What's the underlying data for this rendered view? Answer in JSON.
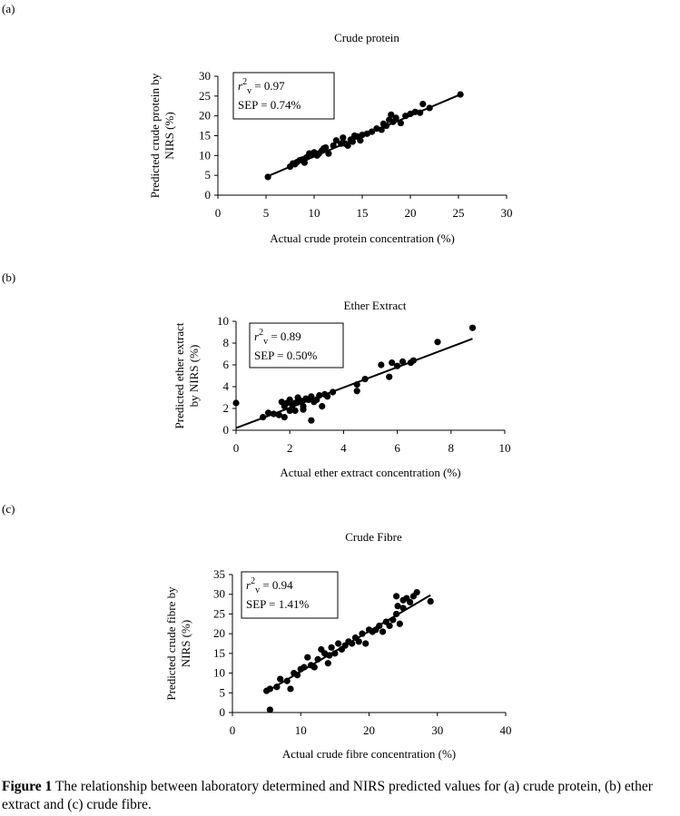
{
  "chart_data": [
    {
      "type": "scatter",
      "panel_label": "(a)",
      "title": "Crude protein",
      "xlabel": "Actual crude protein concentration (%)",
      "ylabel": [
        "Predicted crude protein by",
        "NIRS (%)"
      ],
      "annotations": [
        {
          "symbol": "r",
          "sup": "2",
          "sub": "v",
          "text": " = 0.97"
        },
        {
          "text": "SEP = 0.74%"
        }
      ],
      "xlim": [
        0,
        30
      ],
      "xticks": [
        0,
        5,
        10,
        15,
        20,
        25,
        30
      ],
      "ylim": [
        0,
        30
      ],
      "yticks": [
        0,
        5,
        10,
        15,
        20,
        25,
        30
      ],
      "color": "#000000",
      "x": [
        5.2,
        7.5,
        7.8,
        8,
        8.2,
        8.5,
        8.8,
        9,
        9.2,
        9.5,
        9.8,
        10,
        10.3,
        10.5,
        10.8,
        11,
        11.2,
        11.5,
        12,
        12.3,
        12.8,
        13,
        13.2,
        13.5,
        13.8,
        14,
        14.2,
        14.5,
        14.8,
        15,
        15.5,
        16,
        16.5,
        17,
        17.2,
        17.5,
        17.8,
        18,
        18.2,
        18.5,
        19,
        19.5,
        20,
        20.5,
        21,
        21.3,
        22,
        25.2
      ],
      "values": [
        4.6,
        7.2,
        8,
        7.8,
        8.3,
        8.8,
        9,
        8.2,
        9.5,
        10.5,
        10.2,
        10.8,
        10,
        10.5,
        11.2,
        11.8,
        12,
        10.5,
        12.5,
        13.8,
        13,
        14.5,
        13,
        12.5,
        14,
        13.5,
        15,
        14.8,
        13.8,
        15.2,
        15.5,
        16,
        16.8,
        16.5,
        18,
        17.5,
        19,
        20.3,
        18.5,
        19.5,
        18.2,
        20,
        20.5,
        21,
        20.8,
        23,
        22,
        25.4
      ],
      "fit_line": {
        "x": [
          5.2,
          25.2
        ],
        "y": [
          4.8,
          25.4
        ]
      }
    },
    {
      "type": "scatter",
      "panel_label": "(b)",
      "title": "Ether Extract",
      "xlabel": "Actual ether extract concentration (%)",
      "ylabel": [
        "Predicted ether extract",
        "by NIRS (%)"
      ],
      "annotations": [
        {
          "symbol": "r",
          "sup": "2",
          "sub": "v",
          "text": " = 0.89"
        },
        {
          "text": "SEP = 0.50%"
        }
      ],
      "xlim": [
        0,
        10
      ],
      "xticks": [
        0,
        2,
        4,
        6,
        8,
        10
      ],
      "ylim": [
        0,
        10
      ],
      "yticks": [
        0,
        2,
        4,
        6,
        8,
        10
      ],
      "color": "#000000",
      "x": [
        0,
        1,
        1.2,
        1.4,
        1.6,
        1.7,
        1.8,
        1.8,
        1.9,
        2,
        2,
        2.1,
        2.2,
        2.2,
        2.3,
        2.4,
        2.5,
        2.5,
        2.6,
        2.7,
        2.8,
        2.8,
        2.9,
        3,
        3.1,
        3.2,
        3.3,
        3.4,
        3.6,
        4.5,
        4.5,
        4.8,
        5.4,
        5.7,
        5.8,
        6,
        6.2,
        6.5,
        6.6,
        7.5,
        8.8
      ],
      "values": [
        2.5,
        1.2,
        1.6,
        1.5,
        1.4,
        2.6,
        1.2,
        2.2,
        2.5,
        1.8,
        2.8,
        2.3,
        2.5,
        1.8,
        3,
        2.7,
        2.2,
        1.9,
        2.9,
        2.8,
        0.9,
        3.1,
        2.6,
        2.8,
        3.2,
        2.2,
        3.3,
        3.1,
        3.5,
        3.6,
        4.2,
        4.7,
        6,
        4.9,
        6.2,
        5.9,
        6.3,
        6.2,
        6.4,
        8.1,
        9.4
      ],
      "fit_line": {
        "x": [
          0,
          8.8
        ],
        "y": [
          0.2,
          8.4
        ]
      }
    },
    {
      "type": "scatter",
      "panel_label": "(c)",
      "title": "Crude Fibre",
      "xlabel": "Actual crude fibre concentration (%)",
      "ylabel": [
        "Predicted crude fibre by",
        "NIRS (%)"
      ],
      "annotations": [
        {
          "symbol": "r",
          "sup": "2",
          "sub": "v",
          "text": " = 0.94"
        },
        {
          "text": "SEP = 1.41%"
        }
      ],
      "xlim": [
        0,
        40
      ],
      "xticks": [
        0,
        10,
        20,
        30,
        40
      ],
      "ylim": [
        0,
        35
      ],
      "yticks": [
        0,
        5,
        10,
        15,
        20,
        25,
        30,
        35
      ],
      "color": "#000000",
      "x": [
        5,
        5.5,
        5.5,
        6.5,
        7,
        8,
        8.5,
        9,
        9.5,
        10,
        10.5,
        11,
        11.5,
        12,
        12.5,
        13,
        13.5,
        14,
        14.2,
        14.5,
        15,
        15.5,
        16,
        16.5,
        17,
        17.5,
        18,
        18.5,
        19,
        19.5,
        20,
        20.5,
        21,
        21.5,
        22,
        22.5,
        23,
        23.5,
        24,
        24,
        24.2,
        24.5,
        25,
        25,
        25.5,
        26,
        26.5,
        27,
        29
      ],
      "values": [
        5.5,
        6,
        0.7,
        6.5,
        8.5,
        8,
        6,
        10,
        9.5,
        11,
        11.5,
        14,
        12,
        11.5,
        13.5,
        16,
        15,
        12.5,
        14.5,
        16.5,
        15,
        17.5,
        16,
        17,
        18,
        17.5,
        19,
        18,
        20,
        17.5,
        21,
        20.5,
        21,
        22,
        20.5,
        23,
        22,
        23.5,
        29.5,
        25,
        27,
        22.5,
        28.5,
        26.5,
        29,
        28,
        29.5,
        30.5,
        28.2
      ],
      "fit_line": {
        "x": [
          5,
          29
        ],
        "y": [
          5.3,
          29.8
        ]
      }
    }
  ],
  "caption": {
    "label": "Figure 1",
    "text": " The relationship between laboratory determined and NIRS predicted values for (a) crude protein, (b) ether extract and (c) crude fibre."
  }
}
